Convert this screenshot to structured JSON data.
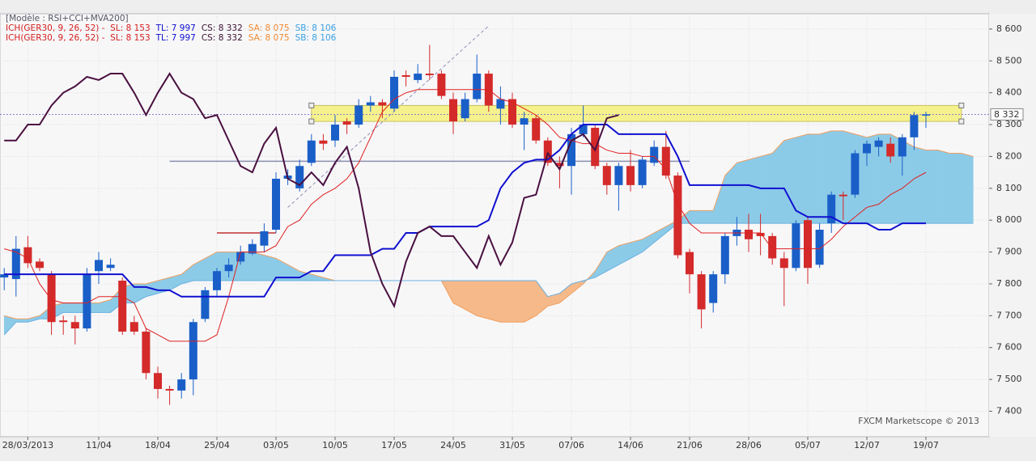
{
  "chart_data": {
    "type": "candlestick",
    "header": "[Modèle : RSI+CCI+MVA200]",
    "legend_lines": [
      [
        "ICH(GER30, 9, 26, 52) -  SL: 8 153",
        "TL: 7 997",
        "CS: 8 332",
        "SA: 8 075",
        "SB: 8 106"
      ],
      [
        "ICH(GER30, 9, 26, 52) -  SL: 8 153",
        "TL: 7 997",
        "CS: 8 332",
        "SA: 8 075",
        "SB: 8 106"
      ]
    ],
    "legend_colors": [
      "#d42020",
      "#1010d0",
      "#3a1030",
      "#f08a30",
      "#3aa0e0"
    ],
    "credit": "FXCM Marketscope © 2013",
    "categories": [
      null,
      null,
      "28/03/2013",
      null,
      null,
      null,
      null,
      null,
      "11/04",
      null,
      null,
      null,
      null,
      "18/04",
      null,
      null,
      null,
      null,
      "25/04",
      null,
      null,
      null,
      null,
      "03/05",
      null,
      null,
      null,
      null,
      "10/05",
      null,
      null,
      null,
      null,
      "17/05",
      null,
      null,
      null,
      null,
      "24/05",
      null,
      null,
      null,
      null,
      "31/05",
      null,
      null,
      null,
      null,
      "07/06",
      null,
      null,
      null,
      null,
      "14/06",
      null,
      null,
      null,
      null,
      "21/06",
      null,
      null,
      null,
      null,
      "28/06",
      null,
      null,
      null,
      null,
      "05/07",
      null,
      null,
      null,
      null,
      "12/07",
      null,
      null,
      null,
      null,
      "19/07",
      null,
      null,
      null,
      null
    ],
    "candles": {
      "up_color": "#1a5fc8",
      "down_color": "#d42a2a",
      "open": [
        7820,
        7815,
        7915,
        7870,
        7830,
        7685,
        7680,
        7660,
        7840,
        7850,
        7810,
        7680,
        7650,
        7520,
        7470,
        7465,
        7500,
        7690,
        7780,
        7840,
        7870,
        7895,
        7920,
        7970,
        8130,
        8100,
        8180,
        8250,
        8250,
        8310,
        8300,
        8360,
        8370,
        8350,
        8455,
        8440,
        8460,
        8460,
        8380,
        8320,
        8380,
        8460,
        8350,
        8380,
        8300,
        8320,
        8250,
        8180,
        8170,
        8270,
        8290,
        8170,
        8110,
        8170,
        8110,
        8180,
        8230,
        8140,
        7900,
        7830,
        7740,
        7830,
        7950,
        7970,
        7960,
        7950,
        7880,
        7850,
        8000,
        7860,
        7990,
        8080,
        8080,
        8210,
        8230,
        8240,
        8200,
        8260,
        8330,
        null,
        null,
        null,
        null
      ],
      "high": [
        7850,
        7950,
        7950,
        7880,
        7840,
        7700,
        7700,
        7850,
        7900,
        7880,
        7820,
        7700,
        7660,
        7540,
        7480,
        7520,
        7690,
        7790,
        7850,
        7880,
        7920,
        7940,
        7990,
        8150,
        8160,
        8190,
        8270,
        8270,
        8330,
        8320,
        8380,
        8390,
        8380,
        8470,
        8470,
        8490,
        8550,
        8470,
        8400,
        8400,
        8520,
        8470,
        8420,
        8400,
        8340,
        8330,
        8260,
        8200,
        8290,
        8360,
        8300,
        8180,
        8180,
        8220,
        8200,
        8250,
        8280,
        8150,
        7910,
        7840,
        7840,
        7960,
        8010,
        8020,
        8020,
        7960,
        7900,
        8000,
        8010,
        7990,
        8090,
        8090,
        8220,
        8250,
        8260,
        8260,
        8270,
        8340,
        8340,
        null,
        null,
        null,
        null
      ],
      "low": [
        7780,
        7760,
        7850,
        7840,
        7640,
        7640,
        7610,
        7650,
        7800,
        7840,
        7640,
        7640,
        7500,
        7440,
        7420,
        7440,
        7450,
        7680,
        7760,
        7820,
        7860,
        7890,
        7900,
        7960,
        8110,
        8090,
        8170,
        8220,
        8230,
        8270,
        8290,
        8340,
        8320,
        8340,
        8420,
        8430,
        8440,
        8380,
        8270,
        8310,
        8370,
        8340,
        8300,
        8290,
        8220,
        8240,
        8170,
        8100,
        8080,
        8260,
        8160,
        8080,
        8030,
        8090,
        8100,
        8170,
        8130,
        7880,
        7770,
        7660,
        7710,
        7800,
        7920,
        7900,
        7890,
        7860,
        7730,
        7840,
        7800,
        7850,
        7960,
        8000,
        8070,
        8170,
        8200,
        8180,
        8140,
        8220,
        8290,
        null,
        null,
        null,
        null
      ],
      "close": [
        7830,
        7910,
        7865,
        7850,
        7680,
        7680,
        7660,
        7830,
        7875,
        7860,
        7650,
        7650,
        7520,
        7470,
        7465,
        7500,
        7680,
        7780,
        7840,
        7860,
        7900,
        7925,
        7965,
        8130,
        8140,
        8170,
        8250,
        8240,
        8300,
        8300,
        8360,
        8370,
        8360,
        8450,
        8450,
        8460,
        8455,
        8390,
        8310,
        8380,
        8460,
        8360,
        8380,
        8300,
        8320,
        8250,
        8180,
        8170,
        8270,
        8300,
        8170,
        8110,
        8170,
        8110,
        8190,
        8230,
        8140,
        7890,
        7830,
        7720,
        7830,
        7950,
        7970,
        7940,
        7950,
        7880,
        7850,
        7990,
        7850,
        7970,
        8080,
        8075,
        8210,
        8240,
        8250,
        8200,
        8260,
        8330,
        8332,
        null,
        null,
        null,
        null
      ]
    },
    "lines": [
      {
        "color": "#e02020",
        "width": 1,
        "values": [
          7910,
          7900,
          7880,
          7800,
          7750,
          7740,
          7740,
          7740,
          7760,
          7760,
          7760,
          7740,
          7660,
          7640,
          7620,
          7620,
          7620,
          7620,
          7640,
          7760,
          7900,
          7900,
          7900,
          7920,
          7980,
          8000,
          8050,
          8080,
          8100,
          8130,
          8180,
          8260,
          8340,
          8380,
          8400,
          8410,
          8410,
          8410,
          8410,
          8410,
          8410,
          8410,
          8380,
          8370,
          8350,
          8330,
          8300,
          8260,
          8250,
          8240,
          8240,
          8220,
          8210,
          8210,
          8200,
          8200,
          8160,
          8050,
          7990,
          7960,
          7960,
          7960,
          7960,
          7960,
          7960,
          7910,
          7910,
          7910,
          7910,
          7910,
          7940,
          7980,
          8010,
          8040,
          8050,
          8080,
          8100,
          8130,
          8150,
          null,
          null,
          null,
          null
        ]
      },
      {
        "color": "#1010d0",
        "width": 2,
        "values": [
          7830,
          7830,
          7830,
          7830,
          7830,
          7830,
          7830,
          7830,
          7830,
          7830,
          7830,
          7790,
          7790,
          7780,
          7780,
          7760,
          7760,
          7760,
          7760,
          7760,
          7760,
          7760,
          7760,
          7820,
          7820,
          7820,
          7840,
          7840,
          7890,
          7890,
          7890,
          7890,
          7910,
          7910,
          7960,
          7960,
          7980,
          7980,
          7980,
          7980,
          7980,
          8000,
          8100,
          8150,
          8180,
          8190,
          8190,
          8220,
          8270,
          8300,
          8300,
          8300,
          8270,
          8270,
          8270,
          8270,
          8270,
          8200,
          8110,
          8110,
          8110,
          8110,
          8110,
          8110,
          8100,
          8100,
          8100,
          8030,
          8010,
          8010,
          8010,
          7990,
          7990,
          7990,
          7970,
          7970,
          7990,
          7990,
          7990,
          null,
          null,
          null,
          null
        ]
      },
      {
        "color": "#4a1040",
        "width": 2,
        "values": [
          8250,
          8250,
          8300,
          8300,
          8360,
          8400,
          8420,
          8450,
          8440,
          8460,
          8460,
          8400,
          8330,
          8400,
          8460,
          8400,
          8380,
          8320,
          8330,
          8250,
          8170,
          8150,
          8240,
          8290,
          8130,
          8110,
          8150,
          8110,
          8180,
          8230,
          8100,
          7900,
          7800,
          7730,
          7870,
          7960,
          7980,
          7950,
          7950,
          7900,
          7850,
          7950,
          7860,
          7930,
          8070,
          8080,
          8210,
          8160,
          8250,
          8270,
          8220,
          8320,
          8330,
          null,
          null,
          null,
          null,
          null,
          null,
          null,
          null,
          null,
          null,
          null,
          null,
          null,
          null,
          null,
          null,
          null,
          null,
          null,
          null,
          null,
          null,
          null,
          null,
          null,
          null,
          null,
          null,
          null,
          null
        ]
      }
    ],
    "cloud": {
      "up_fill": "#8ccbe8",
      "down_fill": "#f5b98a",
      "a": {
        "color": "#f0a060",
        "values": [
          7700,
          7690,
          7690,
          7700,
          7730,
          7740,
          7740,
          7740,
          7740,
          7750,
          7790,
          7800,
          7800,
          7810,
          7820,
          7830,
          7860,
          7880,
          7900,
          7900,
          7900,
          7900,
          7890,
          7880,
          7860,
          7840,
          7830,
          7820,
          7810,
          7810,
          7810,
          7810,
          7810,
          7810,
          7810,
          7810,
          7810,
          7810,
          7740,
          7720,
          7700,
          7690,
          7680,
          7680,
          7680,
          7700,
          7730,
          7740,
          7770,
          7800,
          7840,
          7900,
          7920,
          7930,
          7940,
          7960,
          7980,
          8000,
          8030,
          8030,
          8030,
          8140,
          8180,
          8190,
          8200,
          8210,
          8250,
          8260,
          8270,
          8270,
          8280,
          8280,
          8270,
          8260,
          8270,
          8270,
          8250,
          8230,
          8220,
          8220,
          8210,
          8210,
          8200
        ]
      },
      "b": {
        "color": "#6ab0e0",
        "values": [
          7640,
          7680,
          7680,
          7690,
          7690,
          7710,
          7710,
          7710,
          7710,
          7710,
          7740,
          7740,
          7760,
          7770,
          7780,
          7800,
          7810,
          7810,
          7810,
          7810,
          7810,
          7810,
          7810,
          7810,
          7810,
          7810,
          7810,
          7810,
          7810,
          7810,
          7810,
          7810,
          7810,
          7810,
          7810,
          7810,
          7810,
          7810,
          7810,
          7810,
          7810,
          7810,
          7810,
          7810,
          7810,
          7810,
          7760,
          7770,
          7800,
          7810,
          7820,
          7840,
          7860,
          7880,
          7900,
          7930,
          7960,
          7990,
          7990,
          7990,
          7990,
          7990,
          7990,
          7990,
          7990,
          7990,
          7990,
          7990,
          7990,
          7990,
          7990,
          7990,
          7990,
          7990,
          7990,
          7990,
          7990,
          7990,
          7990,
          7990,
          7990,
          7990,
          7990
        ]
      }
    },
    "zone": {
      "from": 26,
      "to": 81,
      "low": 8310,
      "high": 8360,
      "color": "#f5f07a"
    },
    "levels": [
      {
        "from": 14,
        "to": 58,
        "value": 8185,
        "color": "#8a8fb0"
      },
      {
        "from": 18,
        "to": 23,
        "value": 7960,
        "color": "#c03030"
      }
    ],
    "trendline": {
      "x": [
        24,
        41
      ],
      "y": [
        8040,
        8610
      ],
      "color": "#9090b8"
    },
    "price_line": {
      "value": 8332,
      "label": "8 332"
    },
    "ylim": [
      7320,
      8648
    ],
    "yticks": [
      {
        "value": 8600,
        "label": "8 600"
      },
      {
        "value": 8500,
        "label": "8 500"
      },
      {
        "value": 8400,
        "label": "8 400"
      },
      {
        "value": 8300,
        "label": "8 300"
      },
      {
        "value": 8200,
        "label": "8 200"
      },
      {
        "value": 8100,
        "label": "8 100"
      },
      {
        "value": 8000,
        "label": "8 000"
      },
      {
        "value": 7900,
        "label": "7 900"
      },
      {
        "value": 7800,
        "label": "7 800"
      },
      {
        "value": 7700,
        "label": "7 700"
      },
      {
        "value": 7600,
        "label": "7 600"
      },
      {
        "value": 7500,
        "label": "7 500"
      },
      {
        "value": 7400,
        "label": "7 400"
      }
    ],
    "grid": true
  }
}
